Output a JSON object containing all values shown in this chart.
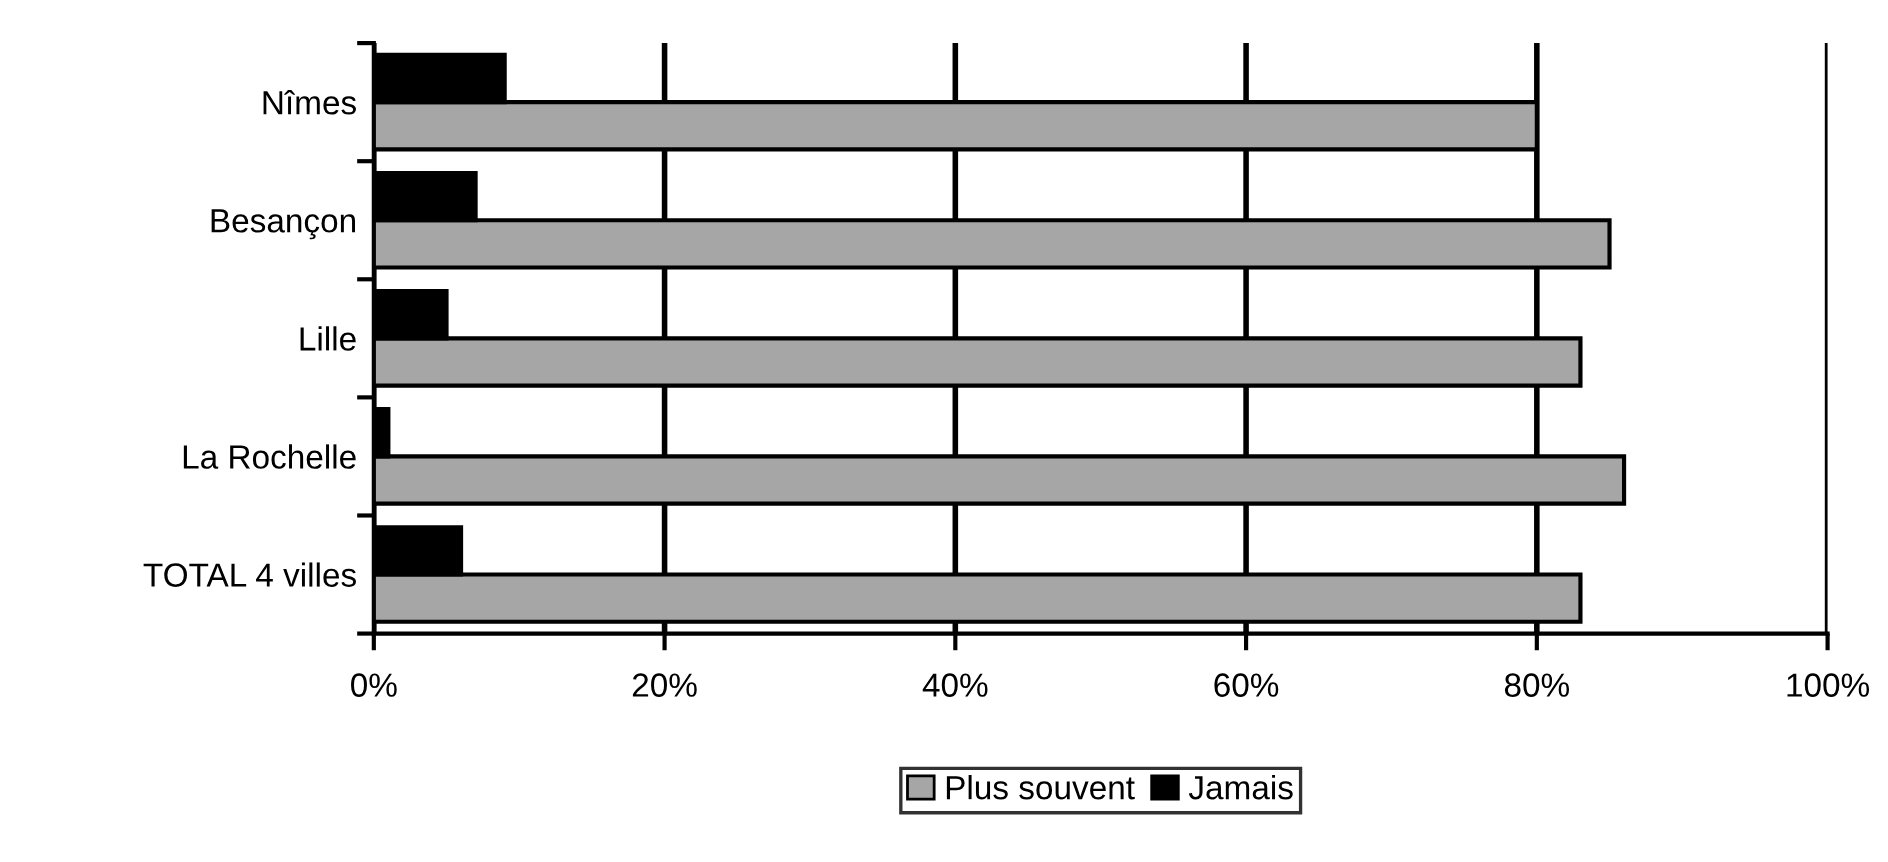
{
  "chart_data": {
    "type": "bar",
    "orientation": "horizontal",
    "categories": [
      "Nîmes",
      "Besançon",
      "Lille",
      "La Rochelle",
      "TOTAL 4 villes"
    ],
    "series": [
      {
        "name": "Plus souvent",
        "color": "#a6a6a6",
        "values": [
          80,
          85,
          83,
          86,
          83
        ]
      },
      {
        "name": "Jamais",
        "color": "#000000",
        "values": [
          9,
          7,
          5,
          1,
          6
        ]
      }
    ],
    "xlim": [
      0,
      100
    ],
    "xticks": [
      {
        "value": 0,
        "label": "0%"
      },
      {
        "value": 20,
        "label": "20%"
      },
      {
        "value": 40,
        "label": "40%"
      },
      {
        "value": 60,
        "label": "60%"
      },
      {
        "value": 80,
        "label": "80%"
      },
      {
        "value": 100,
        "label": "100%"
      }
    ],
    "grid": "x",
    "legend": "bottom"
  }
}
